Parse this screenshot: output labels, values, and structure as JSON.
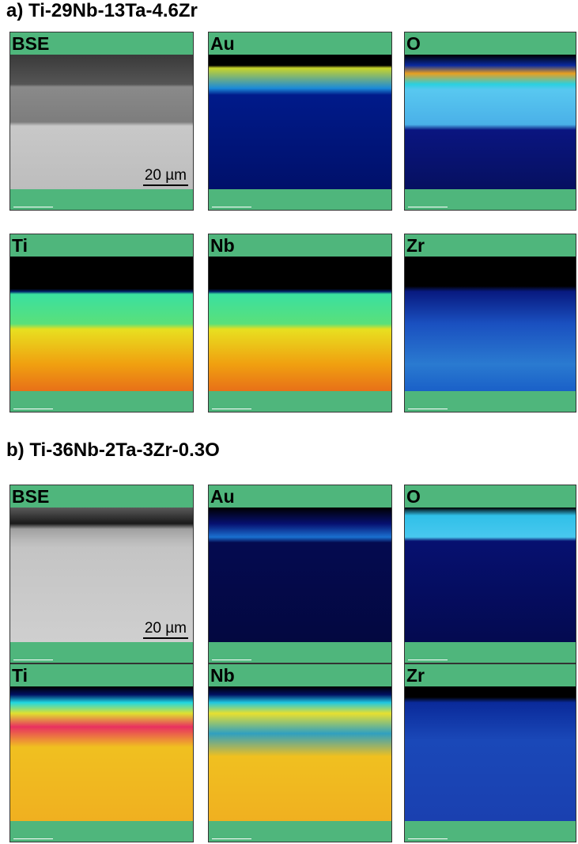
{
  "sections": [
    {
      "title": "a) Ti-29Nb-13Ta-4.6Zr",
      "panels": [
        {
          "label": "BSE",
          "scale": "20 µm"
        },
        {
          "label": "Au"
        },
        {
          "label": "O"
        },
        {
          "label": "Ti"
        },
        {
          "label": "Nb"
        },
        {
          "label": "Zr"
        }
      ]
    },
    {
      "title": "b) Ti-36Nb-2Ta-3Zr-0.3O",
      "panels": [
        {
          "label": "BSE",
          "scale": "20 µm"
        },
        {
          "label": "Au"
        },
        {
          "label": "O"
        },
        {
          "label": "Ti"
        },
        {
          "label": "Nb"
        },
        {
          "label": "Zr"
        }
      ]
    }
  ]
}
